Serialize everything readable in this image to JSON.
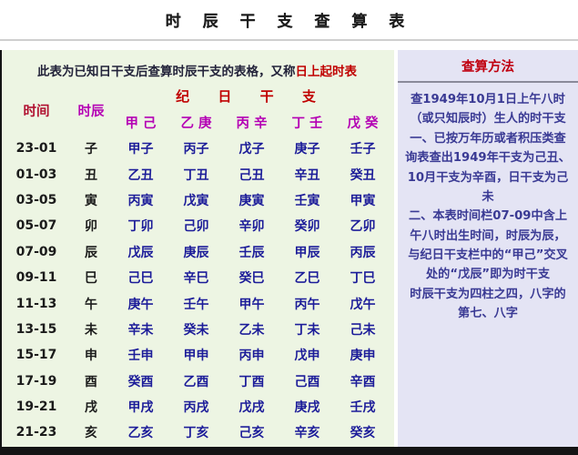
{
  "title": "时 辰 干 支 查 算 表",
  "subtitle": {
    "prefix": "此表为已知日干支后查算时辰干支的表格，又称",
    "highlight": "日上起时表"
  },
  "table": {
    "col_time": "时间",
    "col_branch": "时辰",
    "group_header": "纪 日 干 支",
    "stem_headers": [
      "甲 己",
      "乙 庚",
      "丙 辛",
      "丁 壬",
      "戊 癸"
    ],
    "rows": [
      {
        "time": "23-01",
        "branch": "子",
        "cells": [
          "甲子",
          "丙子",
          "戊子",
          "庚子",
          "壬子"
        ]
      },
      {
        "time": "01-03",
        "branch": "丑",
        "cells": [
          "乙丑",
          "丁丑",
          "己丑",
          "辛丑",
          "癸丑"
        ]
      },
      {
        "time": "03-05",
        "branch": "寅",
        "cells": [
          "丙寅",
          "戊寅",
          "庚寅",
          "壬寅",
          "甲寅"
        ]
      },
      {
        "time": "05-07",
        "branch": "卯",
        "cells": [
          "丁卯",
          "己卯",
          "辛卯",
          "癸卯",
          "乙卯"
        ]
      },
      {
        "time": "07-09",
        "branch": "辰",
        "cells": [
          "戊辰",
          "庚辰",
          "壬辰",
          "甲辰",
          "丙辰"
        ]
      },
      {
        "time": "09-11",
        "branch": "巳",
        "cells": [
          "己巳",
          "辛巳",
          "癸巳",
          "乙巳",
          "丁巳"
        ]
      },
      {
        "time": "11-13",
        "branch": "午",
        "cells": [
          "庚午",
          "壬午",
          "甲午",
          "丙午",
          "戊午"
        ]
      },
      {
        "time": "13-15",
        "branch": "未",
        "cells": [
          "辛未",
          "癸未",
          "乙未",
          "丁未",
          "己未"
        ]
      },
      {
        "time": "15-17",
        "branch": "申",
        "cells": [
          "壬申",
          "甲申",
          "丙申",
          "戊申",
          "庚申"
        ]
      },
      {
        "time": "17-19",
        "branch": "酉",
        "cells": [
          "癸酉",
          "乙酉",
          "丁酉",
          "己酉",
          "辛酉"
        ]
      },
      {
        "time": "19-21",
        "branch": "戌",
        "cells": [
          "甲戌",
          "丙戌",
          "戊戌",
          "庚戌",
          "壬戌"
        ]
      },
      {
        "time": "21-23",
        "branch": "亥",
        "cells": [
          "乙亥",
          "丁亥",
          "己亥",
          "辛亥",
          "癸亥"
        ]
      }
    ]
  },
  "sidebar": {
    "title": "查算方法",
    "paragraphs": [
      "查1949年10月1日上午八时（或只知辰时）生人的时干支",
      "一、已按万年历或者积压类查询表查出1949年干支为己丑、10月干支为辛酉，日干支为己未",
      "二、本表时间栏07-09中含上午八时出生时间，时辰为辰，与纪日干支栏中的“甲己”交叉处的“戊辰”即为时干支",
      "时辰干支为四柱之四，八字的第七、八字"
    ]
  },
  "colors": {
    "accent_red": "#c00000",
    "time_header_red": "#b01030",
    "stem_magenta": "#b400b4",
    "data_navy": "#1c1c99",
    "sidebar_text": "#3a3a94",
    "main_bg": "#edf5e3",
    "sidebar_bg": "#e4e4f4",
    "bottom_bar": "#141414"
  }
}
